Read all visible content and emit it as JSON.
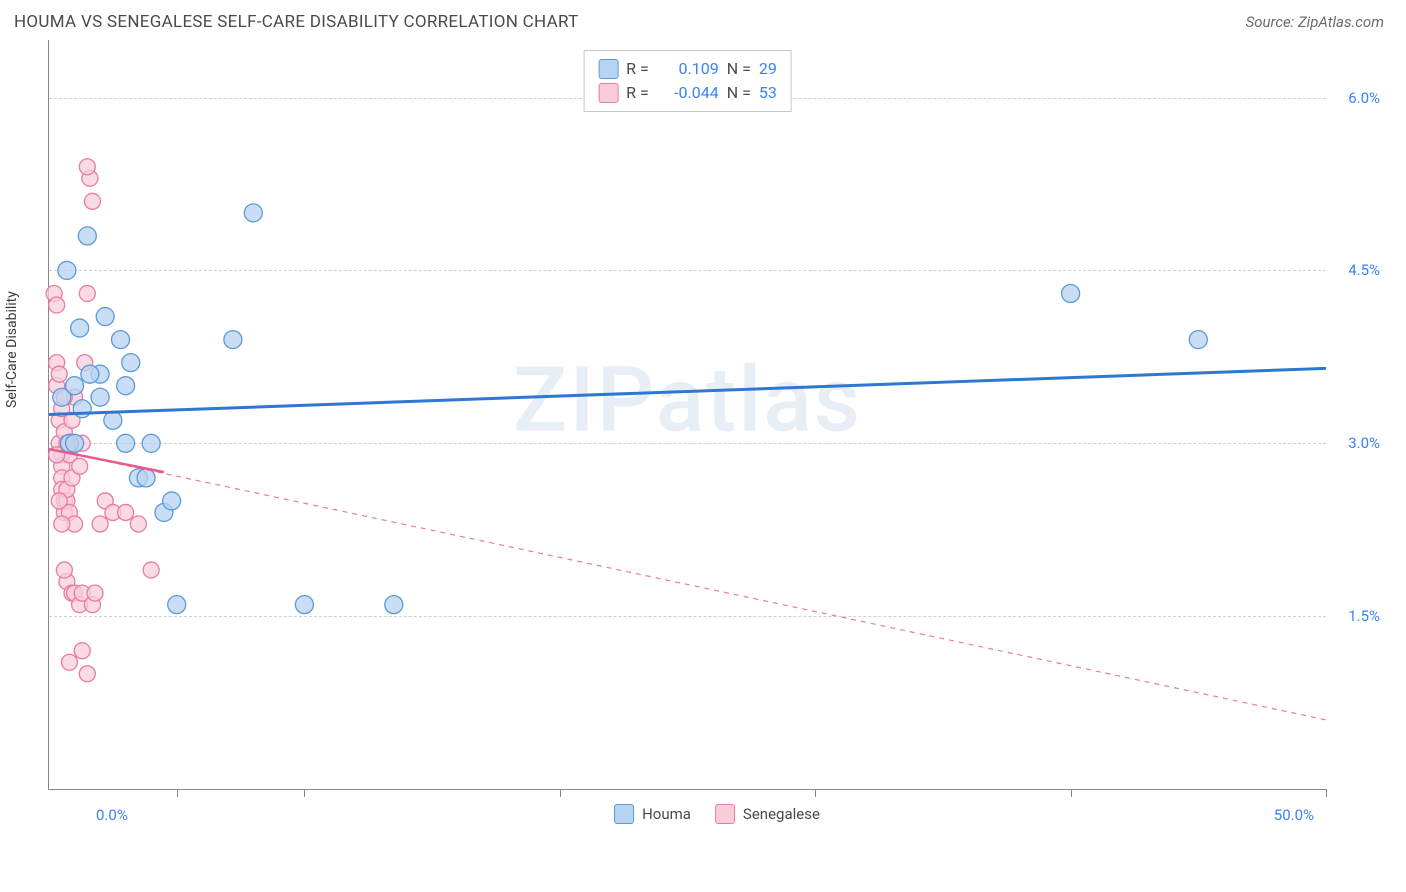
{
  "header": {
    "title": "HOUMA VS SENEGALESE SELF-CARE DISABILITY CORRELATION CHART",
    "source": "Source: ZipAtlas.com"
  },
  "watermark": "ZIPatlas",
  "chart": {
    "type": "scatter",
    "y_axis_label": "Self-Care Disability",
    "xlim": [
      0,
      50
    ],
    "ylim": [
      0,
      6.5
    ],
    "x_tick_left": "0.0%",
    "x_tick_right": "50.0%",
    "x_tick_positions": [
      5,
      10,
      20,
      30,
      40,
      50
    ],
    "y_gridlines": [
      {
        "value": 1.5,
        "label": "1.5%"
      },
      {
        "value": 3.0,
        "label": "3.0%"
      },
      {
        "value": 4.5,
        "label": "4.5%"
      },
      {
        "value": 6.0,
        "label": "6.0%"
      }
    ],
    "background_color": "#ffffff",
    "grid_color": "#d0d0d0",
    "series": [
      {
        "name": "Houma",
        "fill_color": "#b7d3f2",
        "stroke_color": "#5b9bd5",
        "marker_radius": 9,
        "marker_opacity": 0.75,
        "stats": {
          "R_label": "R =",
          "R": "0.109",
          "N_label": "N =",
          "N": "29"
        },
        "trend": {
          "x1": 0,
          "y1": 3.25,
          "x2": 50,
          "y2": 3.65,
          "stroke": "#2e78d2",
          "width": 3,
          "dash": "none"
        },
        "points": [
          {
            "x": 0.5,
            "y": 3.4
          },
          {
            "x": 0.7,
            "y": 4.5
          },
          {
            "x": 1.2,
            "y": 4.0
          },
          {
            "x": 1.5,
            "y": 4.8
          },
          {
            "x": 2.0,
            "y": 3.6
          },
          {
            "x": 2.2,
            "y": 4.1
          },
          {
            "x": 2.5,
            "y": 3.2
          },
          {
            "x": 2.8,
            "y": 3.9
          },
          {
            "x": 3.0,
            "y": 3.0
          },
          {
            "x": 3.2,
            "y": 3.7
          },
          {
            "x": 3.5,
            "y": 2.7
          },
          {
            "x": 4.0,
            "y": 3.0
          },
          {
            "x": 4.5,
            "y": 2.4
          },
          {
            "x": 4.8,
            "y": 2.5
          },
          {
            "x": 5.0,
            "y": 1.6
          },
          {
            "x": 7.2,
            "y": 3.9
          },
          {
            "x": 8.0,
            "y": 5.0
          },
          {
            "x": 10.0,
            "y": 1.6
          },
          {
            "x": 13.5,
            "y": 1.6
          },
          {
            "x": 40.0,
            "y": 4.3
          },
          {
            "x": 45.0,
            "y": 3.9
          },
          {
            "x": 1.0,
            "y": 3.5
          },
          {
            "x": 0.8,
            "y": 3.0
          },
          {
            "x": 1.6,
            "y": 3.6
          },
          {
            "x": 1.0,
            "y": 3.0
          },
          {
            "x": 1.3,
            "y": 3.3
          },
          {
            "x": 3.0,
            "y": 3.5
          },
          {
            "x": 3.8,
            "y": 2.7
          },
          {
            "x": 2.0,
            "y": 3.4
          }
        ]
      },
      {
        "name": "Senegalese",
        "fill_color": "#f8cdd9",
        "stroke_color": "#e77ca2",
        "marker_radius": 8,
        "marker_opacity": 0.75,
        "stats": {
          "R_label": "R =",
          "R": "-0.044",
          "N_label": "N =",
          "N": "53"
        },
        "trend": {
          "x1": 0,
          "y1": 2.95,
          "x2": 50,
          "y2": 0.6,
          "stroke": "#e77ca2",
          "width": 1.2,
          "dash": "5,5"
        },
        "trend_solid": {
          "x1": 0,
          "y1": 2.95,
          "x2": 4.5,
          "y2": 2.75,
          "stroke": "#e85a8c",
          "width": 2.5,
          "dash": "none"
        },
        "points": [
          {
            "x": 0.2,
            "y": 4.3
          },
          {
            "x": 0.3,
            "y": 4.2
          },
          {
            "x": 0.3,
            "y": 3.7
          },
          {
            "x": 0.3,
            "y": 3.5
          },
          {
            "x": 0.4,
            "y": 3.2
          },
          {
            "x": 0.4,
            "y": 3.0
          },
          {
            "x": 0.5,
            "y": 2.9
          },
          {
            "x": 0.5,
            "y": 2.8
          },
          {
            "x": 0.5,
            "y": 2.7
          },
          {
            "x": 0.5,
            "y": 2.6
          },
          {
            "x": 0.6,
            "y": 2.5
          },
          {
            "x": 0.6,
            "y": 2.4
          },
          {
            "x": 0.6,
            "y": 3.1
          },
          {
            "x": 0.7,
            "y": 2.5
          },
          {
            "x": 0.7,
            "y": 2.6
          },
          {
            "x": 0.8,
            "y": 2.4
          },
          {
            "x": 0.8,
            "y": 2.9
          },
          {
            "x": 0.8,
            "y": 3.0
          },
          {
            "x": 0.9,
            "y": 3.2
          },
          {
            "x": 0.9,
            "y": 2.7
          },
          {
            "x": 1.0,
            "y": 3.4
          },
          {
            "x": 1.0,
            "y": 2.3
          },
          {
            "x": 1.2,
            "y": 2.8
          },
          {
            "x": 1.3,
            "y": 3.0
          },
          {
            "x": 1.4,
            "y": 3.7
          },
          {
            "x": 1.5,
            "y": 4.3
          },
          {
            "x": 1.6,
            "y": 5.3
          },
          {
            "x": 1.7,
            "y": 5.1
          },
          {
            "x": 1.5,
            "y": 5.4
          },
          {
            "x": 0.7,
            "y": 1.8
          },
          {
            "x": 0.6,
            "y": 1.9
          },
          {
            "x": 0.9,
            "y": 1.7
          },
          {
            "x": 1.0,
            "y": 1.7
          },
          {
            "x": 1.2,
            "y": 1.6
          },
          {
            "x": 1.3,
            "y": 1.7
          },
          {
            "x": 1.7,
            "y": 1.6
          },
          {
            "x": 1.8,
            "y": 1.7
          },
          {
            "x": 2.0,
            "y": 2.3
          },
          {
            "x": 2.2,
            "y": 2.5
          },
          {
            "x": 2.5,
            "y": 2.4
          },
          {
            "x": 3.0,
            "y": 2.4
          },
          {
            "x": 3.5,
            "y": 2.3
          },
          {
            "x": 4.0,
            "y": 1.9
          },
          {
            "x": 0.8,
            "y": 1.1
          },
          {
            "x": 1.3,
            "y": 1.2
          },
          {
            "x": 1.5,
            "y": 1.0
          },
          {
            "x": 0.5,
            "y": 3.3
          },
          {
            "x": 0.6,
            "y": 3.4
          },
          {
            "x": 0.4,
            "y": 2.5
          },
          {
            "x": 0.5,
            "y": 2.3
          },
          {
            "x": 0.3,
            "y": 2.9
          },
          {
            "x": 0.4,
            "y": 3.6
          },
          {
            "x": 0.7,
            "y": 3.0
          }
        ]
      }
    ]
  }
}
